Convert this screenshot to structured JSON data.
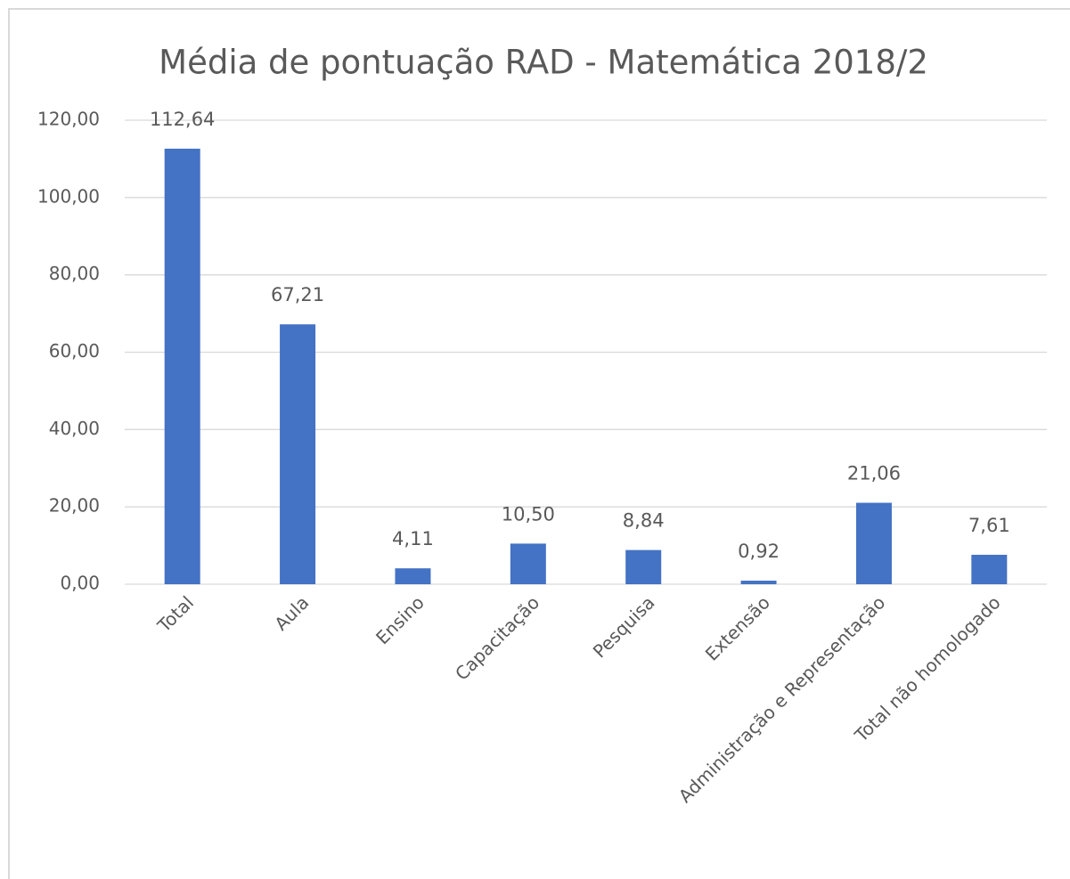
{
  "chart_data": {
    "type": "bar",
    "title": "Média de pontuação RAD - Matemática 2018/2",
    "categories": [
      "Total",
      "Aula",
      "Ensino",
      "Capacitação",
      "Pesquisa",
      "Extensão",
      "Administração e Representação",
      "Total não homologado"
    ],
    "values": [
      112.64,
      67.21,
      4.11,
      10.5,
      8.84,
      0.92,
      21.06,
      7.61
    ],
    "value_labels": [
      "112,64",
      "67,21",
      "4,11",
      "10,50",
      "8,84",
      "0,92",
      "21,06",
      "7,61"
    ],
    "color": "#4472c4",
    "ylim": [
      0,
      120
    ],
    "yticks": [
      {
        "value": 0,
        "label": "0,00"
      },
      {
        "value": 20,
        "label": "20,00"
      },
      {
        "value": 40,
        "label": "40,00"
      },
      {
        "value": 60,
        "label": "60,00"
      },
      {
        "value": 80,
        "label": "80,00"
      },
      {
        "value": 100,
        "label": "100,00"
      },
      {
        "value": 120,
        "label": "120,00"
      }
    ],
    "grid": true
  }
}
